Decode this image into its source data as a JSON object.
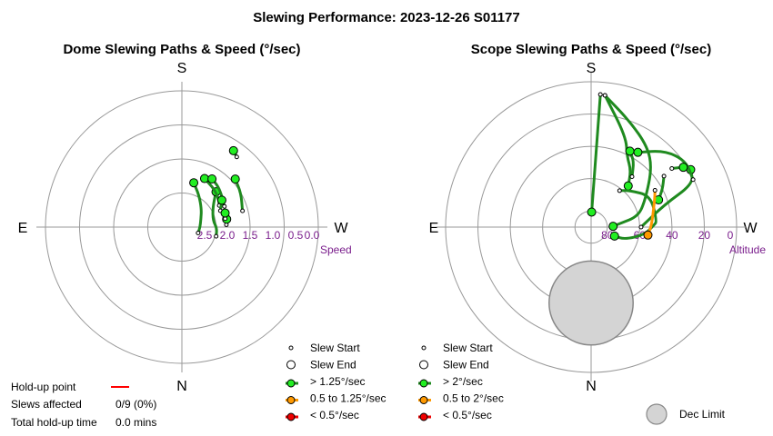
{
  "title": "Slewing Performance: 2023-12-26 S01177",
  "colors": {
    "fast": "#1f8a1f",
    "medium": "#ff9900",
    "slow": "#ee0000",
    "marker_fast": "#22ee22",
    "ring": "#999999",
    "dec_limit": "#d4d4d4",
    "holdup": "#ff0000",
    "tick_label": "#7a1e8c"
  },
  "info": {
    "holdup_label": "Hold-up point",
    "slews_affected_label": "Slews affected",
    "slews_affected_value": "0/9 (0%)",
    "total_holdup_label": "Total hold-up time",
    "total_holdup_value": "0.0 mins"
  },
  "chart_data": [
    {
      "type": "polar",
      "title": "Dome Slewing Paths & Speed (°/sec)",
      "compass": {
        "top": "S",
        "bottom": "N",
        "left": "E",
        "right": "W"
      },
      "radial_axis_label": "Speed",
      "radial_ticks": [
        "2.5",
        "2.0",
        "1.5",
        "1.0",
        "0.5",
        "0.0"
      ],
      "radial_tick_values": [
        2.5,
        2.0,
        1.5,
        1.0,
        0.5,
        0.0
      ],
      "radial_range": [
        3.0,
        0.0
      ],
      "grid": true,
      "legend": {
        "items": [
          {
            "kind": "start",
            "label": "Slew Start"
          },
          {
            "kind": "end",
            "label": "Slew End"
          },
          {
            "kind": "fast",
            "label": "> 1.25°/sec"
          },
          {
            "kind": "medium",
            "label": "0.5 to 1.25°/sec"
          },
          {
            "kind": "slow",
            "label": "< 0.5°/sec"
          }
        ]
      },
      "paths": [
        {
          "speed_class": "fast",
          "points": [
            [
              255,
              2.22
            ],
            [
              268,
              2.23
            ],
            [
              282,
              2.3
            ],
            [
              302,
              2.2
            ],
            [
              316,
              1.92
            ]
          ]
        },
        {
          "speed_class": "fast",
          "points": [
            [
              250,
              2.62
            ],
            [
              270,
              2.6
            ],
            [
              292,
              2.55
            ],
            [
              312,
              2.42
            ],
            [
              332,
              2.2
            ],
            [
              345,
              1.99
            ]
          ]
        },
        {
          "speed_class": "fast",
          "points": [
            [
              300,
              2.05
            ],
            [
              308,
              1.98
            ],
            [
              320,
              1.9
            ],
            [
              335,
              1.82
            ]
          ]
        },
        {
          "speed_class": "fast",
          "points": [
            [
              296,
              1.96
            ],
            [
              306,
              1.9
            ],
            [
              318,
              1.8
            ],
            [
              328,
              1.75
            ]
          ]
        },
        {
          "speed_class": "fast",
          "points": [
            [
              285,
              1.62
            ],
            [
              300,
              1.5
            ],
            [
              312,
              1.42
            ]
          ]
        },
        {
          "speed_class": "fast",
          "points": [
            [
              322,
              1.04
            ],
            [
              326,
              0.97
            ]
          ]
        },
        {
          "speed_class": "fast",
          "points": [
            [
              293,
              2.08
            ],
            [
              300,
              2.0
            ],
            [
              304,
              1.94
            ]
          ]
        },
        {
          "speed_class": "fast",
          "points": [
            [
              273,
              2.02
            ],
            [
              280,
              2.0
            ]
          ]
        },
        {
          "speed_class": "fast",
          "points": [
            [
              281,
              2.03
            ],
            [
              288,
              2.0
            ]
          ]
        }
      ]
    },
    {
      "type": "polar",
      "title": "Scope Slewing Paths & Speed (°/sec)",
      "compass": {
        "top": "S",
        "bottom": "N",
        "left": "E",
        "right": "W"
      },
      "radial_axis_label": "Altitude",
      "radial_ticks": [
        "80",
        "60",
        "40",
        "20",
        "0"
      ],
      "radial_tick_values": [
        80,
        60,
        40,
        20,
        0
      ],
      "radial_range": [
        90,
        0
      ],
      "grid": true,
      "dec_limit": {
        "label": "Dec Limit",
        "center_az": 180,
        "center_alt": 43,
        "radius_deg": 26
      },
      "legend": {
        "items": [
          {
            "kind": "start",
            "label": "Slew Start"
          },
          {
            "kind": "end",
            "label": "Slew End"
          },
          {
            "kind": "fast",
            "label": "> 2°/sec"
          },
          {
            "kind": "medium",
            "label": "0.5 to 2°/sec"
          },
          {
            "kind": "slow",
            "label": "< 0.5°/sec"
          }
        ]
      },
      "paths": [
        {
          "speed_class": "fast",
          "points": [
            [
              356,
              7.7
            ],
            [
              358,
              80.7
            ]
          ]
        },
        {
          "speed_class": "fast",
          "points": [
            [
              354,
              8.0
            ],
            [
              340,
              20.2
            ],
            [
              325,
              29.2
            ],
            [
              314,
              37.8
            ],
            [
              297,
              52.3
            ],
            [
              283,
              60.0
            ],
            [
              277,
              72.1
            ],
            [
              272,
              76.4
            ]
          ]
        },
        {
          "speed_class": "fast",
          "points": [
            [
              354,
              8.0
            ],
            [
              339,
              30.0
            ],
            [
              333,
              41.0
            ],
            [
              325,
              47.0
            ],
            [
              318,
              55.7
            ]
          ]
        },
        {
          "speed_class": "fast",
          "points": [
            [
              322,
              61.4
            ],
            [
              314,
              57.4
            ],
            [
              298,
              48.3
            ],
            [
              275,
              49.2
            ],
            [
              272,
              51.0
            ],
            [
              262,
              56.5
            ],
            [
              250,
              67.8
            ],
            [
              249,
              74.5
            ]
          ]
        },
        {
          "speed_class": "fast",
          "points": [
            [
              270,
              59.1
            ],
            [
              287,
              42.6
            ],
            [
              293,
              21.4
            ],
            [
              300,
              18.9
            ]
          ]
        },
        {
          "speed_class": "fast",
          "points": [
            [
              321,
              49.8
            ],
            [
              327,
              41.4
            ],
            [
              333,
              37.2
            ]
          ]
        },
        {
          "speed_class": "fast",
          "points": [
            [
              295,
              20.4
            ],
            [
              305,
              18.5
            ],
            [
              316,
              24.2
            ],
            [
              328,
              35.4
            ]
          ]
        },
        {
          "speed_class": "fast",
          "points": [
            [
              306,
              28.3
            ],
            [
              303,
              22.0
            ]
          ]
        },
        {
          "speed_class": "fast",
          "points": [
            [
              305,
              35.0
            ],
            [
              298,
              40.0
            ],
            [
              292,
              45.0
            ]
          ]
        },
        {
          "speed_class": "medium",
          "points": [
            [
              300,
              44.4
            ],
            [
              295,
              46.5
            ],
            [
              280,
              51.3
            ],
            [
              270,
              53.0
            ],
            [
              262,
              54.5
            ]
          ]
        }
      ]
    }
  ]
}
